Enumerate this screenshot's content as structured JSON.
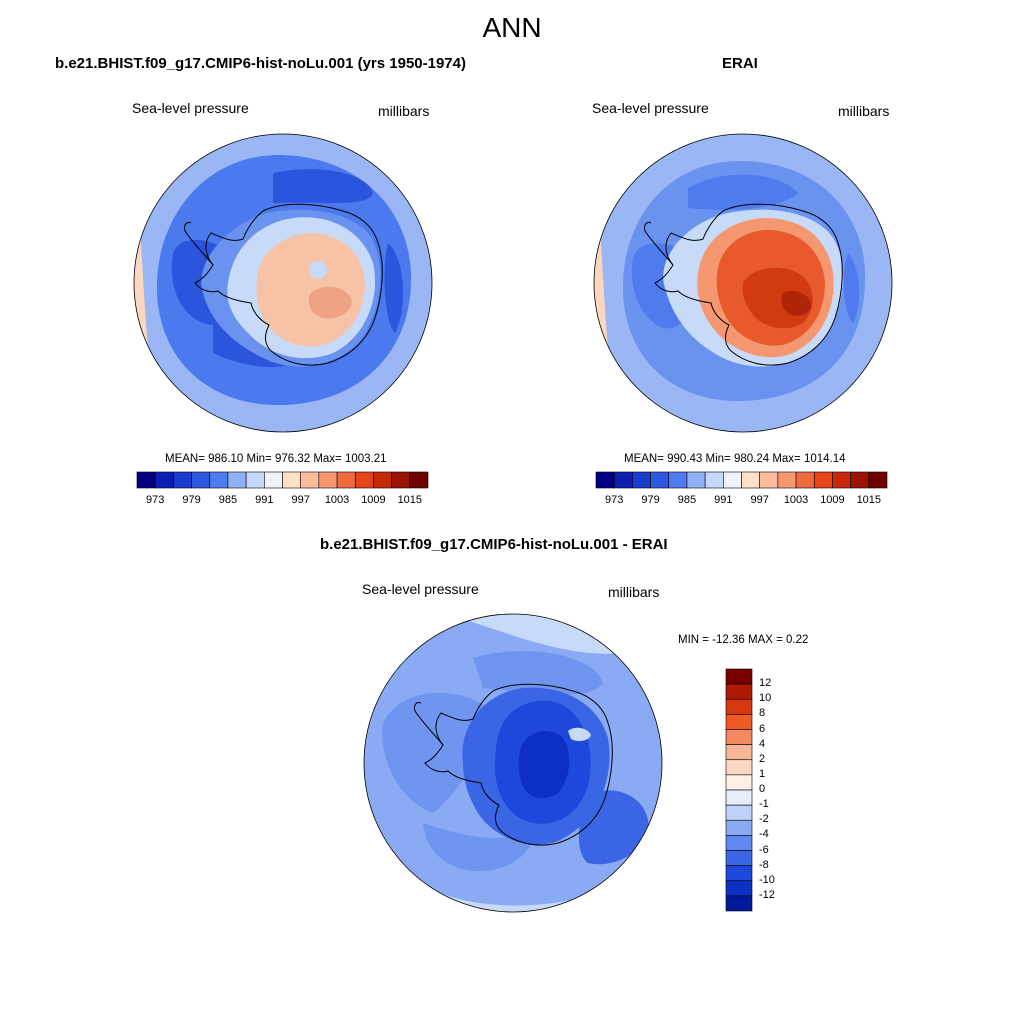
{
  "main_title": "ANN",
  "panels": [
    {
      "title": "b.e21.BHIST.f09_g17.CMIP6-hist-noLu.001 (yrs 1950-1974)",
      "variable": "Sea-level pressure",
      "units": "millibars",
      "stats": "MEAN= 986.10  Min= 976.32  Max= 1003.21",
      "colorbar": {
        "labels": [
          "973",
          "979",
          "985",
          "991",
          "997",
          "1003",
          "1009",
          "1015"
        ],
        "colors": [
          "#000080",
          "#0a1fb0",
          "#1a3ccc",
          "#2f58e0",
          "#4f7bef",
          "#8fb0f5",
          "#c4d8f9",
          "#eef3fb",
          "#fde0c8",
          "#f9bd9d",
          "#f59872",
          "#f06a40",
          "#e34418",
          "#c42a08",
          "#9a1405",
          "#700000"
        ]
      },
      "field": {
        "colors": [
          "#9ab6f4",
          "#4b7aee",
          "#2a55dc",
          "#6a93ef",
          "#4f7bef",
          "#9ab6f4",
          "#c7dbf9",
          "#f6c3a6",
          "#f0a384"
        ]
      }
    },
    {
      "title": "ERAI",
      "variable": "Sea-level pressure",
      "units": "millibars",
      "stats": "MEAN= 990.43  Min= 980.24  Max= 1014.14",
      "colorbar": {
        "labels": [
          "973",
          "979",
          "985",
          "991",
          "997",
          "1003",
          "1009",
          "1015"
        ],
        "colors": [
          "#000080",
          "#0a1fb0",
          "#1a3ccc",
          "#2f58e0",
          "#4f7bef",
          "#8fb0f5",
          "#c4d8f9",
          "#eef3fb",
          "#fde0c8",
          "#f9bd9d",
          "#f59872",
          "#f06a40",
          "#e34418",
          "#c42a08",
          "#9a1405",
          "#700000"
        ]
      },
      "field": {
        "colors": [
          "#9ab6f4",
          "#6a93ef",
          "#4f7bef",
          "#3563e4",
          "#6a93ef",
          "#c7dbf9",
          "#f59872",
          "#e85a2c",
          "#d23a10",
          "#b02408"
        ]
      }
    },
    {
      "title": "b.e21.BHIST.f09_g17.CMIP6-hist-noLu.001 - ERAI",
      "variable": "Sea-level pressure",
      "units": "millibars",
      "stats": "MIN = -12.36 MAX =   0.22",
      "colorbar": {
        "labels": [
          "12",
          "10",
          "8",
          "6",
          "4",
          "2",
          "1",
          "0",
          "-1",
          "-2",
          "-4",
          "-6",
          "-8",
          "-10",
          "-12"
        ],
        "colors": [
          "#7a0000",
          "#b01a05",
          "#d63810",
          "#f05a25",
          "#f58a60",
          "#f9b595",
          "#fcd8c2",
          "#fdf0e8",
          "#e6eefb",
          "#bed1f8",
          "#8aaaf3",
          "#5f88f0",
          "#3a66e6",
          "#1e48dc",
          "#0c2fc4",
          "#001a9a"
        ]
      },
      "field": {
        "colors": [
          "#8aaaf3",
          "#6f95f1",
          "#3a66e6",
          "#1e48dc",
          "#0c2fc4",
          "#c7dbf9"
        ]
      }
    }
  ]
}
